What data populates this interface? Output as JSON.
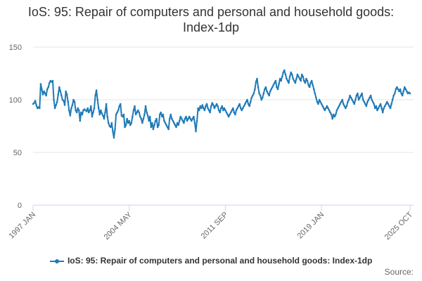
{
  "chart_data": {
    "type": "line",
    "title": "IoS: 95: Repair of computers and personal and household goods: Index-1dp",
    "source_label": "Source:",
    "categories": [
      "1997 JAN",
      null,
      null,
      null,
      null,
      null,
      null,
      null,
      null,
      null,
      null,
      null,
      null,
      null,
      null,
      null,
      null,
      null,
      null,
      null,
      null,
      null,
      null,
      null,
      null,
      null,
      null,
      null,
      null,
      null,
      null,
      null,
      null,
      null,
      null,
      null,
      null,
      null,
      null,
      null,
      null,
      null,
      null,
      null,
      null,
      null,
      null,
      null,
      null,
      null,
      null,
      null,
      null,
      null,
      null,
      null,
      null,
      null,
      null,
      null,
      null,
      null,
      null,
      null,
      null,
      null,
      null,
      null,
      null,
      null,
      null,
      null,
      null,
      null,
      null,
      null,
      null,
      null,
      null,
      null,
      null,
      null,
      null,
      null,
      null,
      null,
      null,
      null,
      "2004 MAY",
      null,
      null,
      null,
      null,
      null,
      null,
      null,
      null,
      null,
      null,
      null,
      null,
      null,
      null,
      null,
      null,
      null,
      null,
      null,
      null,
      null,
      null,
      null,
      null,
      null,
      null,
      null,
      null,
      null,
      null,
      null,
      null,
      null,
      null,
      null,
      null,
      null,
      null,
      null,
      null,
      null,
      null,
      null,
      null,
      null,
      null,
      null,
      null,
      null,
      null,
      null,
      null,
      null,
      null,
      null,
      null,
      null,
      null,
      null,
      null,
      null,
      null,
      null,
      null,
      null,
      null,
      null,
      null,
      null,
      null,
      null,
      null,
      null,
      null,
      null,
      null,
      null,
      null,
      null,
      null,
      null,
      null,
      null,
      null,
      null,
      null,
      null,
      "2011 SEP",
      null,
      null,
      null,
      null,
      null,
      null,
      null,
      null,
      null,
      null,
      null,
      null,
      null,
      null,
      null,
      null,
      null,
      null,
      null,
      null,
      null,
      null,
      null,
      null,
      null,
      null,
      null,
      null,
      null,
      null,
      null,
      null,
      null,
      null,
      null,
      null,
      null,
      null,
      null,
      null,
      null,
      null,
      null,
      null,
      null,
      null,
      null,
      null,
      null,
      null,
      null,
      null,
      null,
      null,
      null,
      null,
      null,
      null,
      null,
      null,
      null,
      null,
      null,
      null,
      null,
      null,
      null,
      null,
      null,
      null,
      null,
      null,
      null,
      null,
      null,
      null,
      null,
      null,
      null,
      null,
      null,
      null,
      null,
      null,
      null,
      null,
      null,
      "2019 JAN",
      null,
      null,
      null,
      null,
      null,
      null,
      null,
      null,
      null,
      null,
      null,
      null,
      null,
      null,
      null,
      null,
      null,
      null,
      null,
      null,
      null,
      null,
      null,
      null,
      null,
      null,
      null,
      null,
      null,
      null,
      null,
      null,
      null,
      null,
      null,
      null,
      null,
      null,
      null,
      null,
      null,
      null,
      null,
      null,
      null,
      null,
      null,
      null,
      null,
      null,
      null,
      null,
      null,
      null,
      null,
      null,
      null,
      null,
      null,
      null,
      null,
      null,
      null,
      null,
      null,
      null,
      null,
      null,
      null,
      null,
      null,
      null,
      null,
      null,
      null,
      null,
      null,
      null,
      null,
      null,
      "2025 OCT"
    ],
    "series": [
      {
        "name": "IoS: 95: Repair of computers and personal and household goods: Index-1dp",
        "color": "#1f7ab8",
        "values": [
          96,
          97,
          99,
          95,
          92,
          93,
          92,
          115,
          110,
          105,
          108,
          106,
          104,
          110,
          112,
          116,
          118,
          117,
          118,
          100,
          92,
          95,
          98,
          105,
          112,
          108,
          104,
          100,
          99,
          95,
          108,
          105,
          98,
          90,
          85,
          92,
          95,
          100,
          98,
          90,
          88,
          92,
          90,
          80,
          88,
          86,
          90,
          91,
          90,
          89,
          92,
          88,
          90,
          94,
          84,
          88,
          92,
          104,
          109,
          100,
          92,
          86,
          90,
          87,
          85,
          82,
          88,
          96,
          84,
          78,
          75,
          74,
          78,
          70,
          64,
          72,
          86,
          88,
          90,
          94,
          96,
          85,
          84,
          86,
          74,
          76,
          82,
          78,
          80,
          76,
          78,
          84,
          90,
          94,
          86,
          88,
          90,
          88,
          84,
          82,
          78,
          82,
          86,
          94,
          88,
          85,
          80,
          84,
          74,
          78,
          72,
          76,
          80,
          82,
          74,
          76,
          86,
          88,
          84,
          86,
          80,
          78,
          76,
          74,
          72,
          82,
          86,
          82,
          80,
          78,
          76,
          74,
          78,
          76,
          80,
          84,
          82,
          80,
          78,
          82,
          84,
          80,
          82,
          84,
          82,
          80,
          82,
          84,
          78,
          70,
          80,
          92,
          90,
          94,
          92,
          95,
          92,
          90,
          94,
          96,
          92,
          90,
          88,
          94,
          97,
          95,
          92,
          94,
          96,
          94,
          90,
          88,
          92,
          94,
          90,
          92,
          90,
          88,
          86,
          84,
          86,
          88,
          90,
          92,
          88,
          86,
          90,
          92,
          94,
          96,
          92,
          90,
          92,
          94,
          96,
          98,
          100,
          96,
          94,
          98,
          102,
          104,
          106,
          110,
          117,
          120,
          112,
          106,
          104,
          100,
          102,
          106,
          110,
          112,
          108,
          106,
          104,
          108,
          110,
          112,
          114,
          116,
          118,
          112,
          110,
          115,
          120,
          118,
          122,
          126,
          128,
          124,
          120,
          118,
          116,
          122,
          126,
          124,
          120,
          118,
          116,
          120,
          124,
          122,
          120,
          118,
          124,
          122,
          118,
          116,
          120,
          118,
          114,
          112,
          116,
          118,
          114,
          110,
          106,
          102,
          98,
          96,
          100,
          98,
          96,
          94,
          92,
          90,
          92,
          94,
          92,
          90,
          88,
          86,
          82,
          86,
          84,
          86,
          90,
          92,
          94,
          96,
          98,
          100,
          96,
          94,
          92,
          94,
          98,
          100,
          104,
          102,
          100,
          98,
          96,
          100,
          104,
          106,
          100,
          102,
          104,
          106,
          100,
          98,
          96,
          94,
          98,
          100,
          102,
          104,
          100,
          98,
          96,
          92,
          94,
          90,
          92,
          94,
          96,
          92,
          88,
          92,
          94,
          96,
          98,
          96,
          94,
          92,
          96,
          100,
          104,
          106,
          110,
          112,
          110,
          108,
          110,
          106,
          104,
          108,
          112,
          110,
          108,
          106,
          107,
          106
        ]
      }
    ],
    "ylim": [
      0,
      150
    ],
    "yticks": [
      0,
      50,
      100,
      150
    ],
    "grid": true,
    "legend": "bottom"
  }
}
